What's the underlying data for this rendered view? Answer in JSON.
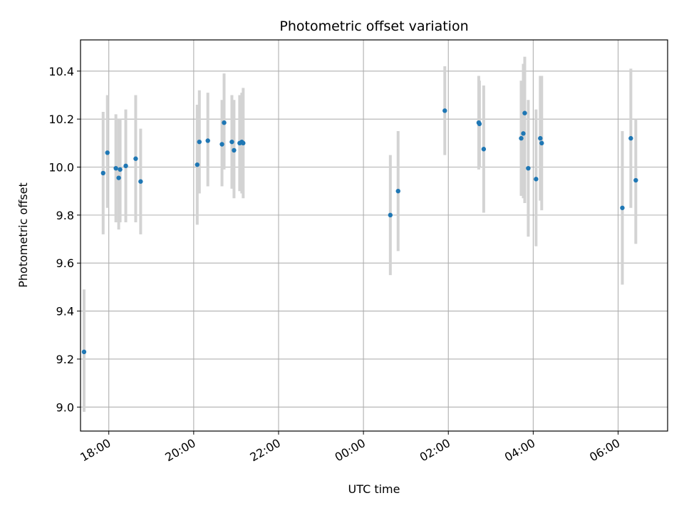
{
  "chart_data": {
    "type": "scatter",
    "title": "Photometric offset variation",
    "xlabel": "UTC time",
    "ylabel": "Photometric offset",
    "x_axis_type": "time",
    "xlim": [
      "17:20",
      "07:10"
    ],
    "x_ticks": [
      "18:00",
      "20:00",
      "22:00",
      "00:00",
      "02:00",
      "04:00",
      "06:00"
    ],
    "ylim": [
      8.9,
      10.53
    ],
    "y_ticks": [
      "9.0",
      "9.2",
      "9.4",
      "9.6",
      "9.8",
      "10.0",
      "10.2",
      "10.4"
    ],
    "grid": true,
    "marker_color": "#1f77b4",
    "errorbar_color": "#d3d3d3",
    "points": [
      {
        "x": "17:25",
        "y": 9.23,
        "yerr_low": 8.98,
        "yerr_high": 9.49
      },
      {
        "x": "17:52",
        "y": 9.975,
        "yerr_low": 9.72,
        "yerr_high": 10.23
      },
      {
        "x": "17:58",
        "y": 10.06,
        "yerr_low": 9.83,
        "yerr_high": 10.3
      },
      {
        "x": "18:10",
        "y": 9.995,
        "yerr_low": 9.77,
        "yerr_high": 10.22
      },
      {
        "x": "18:14",
        "y": 9.955,
        "yerr_low": 9.74,
        "yerr_high": 10.2
      },
      {
        "x": "18:16",
        "y": 9.99,
        "yerr_low": 9.77,
        "yerr_high": 10.2
      },
      {
        "x": "18:24",
        "y": 10.005,
        "yerr_low": 9.77,
        "yerr_high": 10.24
      },
      {
        "x": "18:38",
        "y": 10.035,
        "yerr_low": 9.77,
        "yerr_high": 10.3
      },
      {
        "x": "18:45",
        "y": 9.94,
        "yerr_low": 9.72,
        "yerr_high": 10.16
      },
      {
        "x": "20:05",
        "y": 10.01,
        "yerr_low": 9.76,
        "yerr_high": 10.26
      },
      {
        "x": "20:08",
        "y": 10.105,
        "yerr_low": 9.89,
        "yerr_high": 10.32
      },
      {
        "x": "20:20",
        "y": 10.11,
        "yerr_low": 9.92,
        "yerr_high": 10.31
      },
      {
        "x": "20:40",
        "y": 10.095,
        "yerr_low": 9.92,
        "yerr_high": 10.28
      },
      {
        "x": "20:43",
        "y": 10.185,
        "yerr_low": 9.99,
        "yerr_high": 10.39
      },
      {
        "x": "20:54",
        "y": 10.105,
        "yerr_low": 9.91,
        "yerr_high": 10.3
      },
      {
        "x": "20:57",
        "y": 10.07,
        "yerr_low": 9.87,
        "yerr_high": 10.28
      },
      {
        "x": "21:05",
        "y": 10.1,
        "yerr_low": 9.9,
        "yerr_high": 10.3
      },
      {
        "x": "21:08",
        "y": 10.105,
        "yerr_low": 9.89,
        "yerr_high": 10.31
      },
      {
        "x": "21:10",
        "y": 10.1,
        "yerr_low": 9.87,
        "yerr_high": 10.33
      },
      {
        "x": "00:38",
        "y": 9.8,
        "yerr_low": 9.55,
        "yerr_high": 10.05
      },
      {
        "x": "00:49",
        "y": 9.9,
        "yerr_low": 9.65,
        "yerr_high": 10.15
      },
      {
        "x": "01:55",
        "y": 10.235,
        "yerr_low": 10.05,
        "yerr_high": 10.42
      },
      {
        "x": "02:43",
        "y": 10.185,
        "yerr_low": 9.99,
        "yerr_high": 10.38
      },
      {
        "x": "02:44",
        "y": 10.18,
        "yerr_low": 10.0,
        "yerr_high": 10.36
      },
      {
        "x": "02:50",
        "y": 10.075,
        "yerr_low": 9.81,
        "yerr_high": 10.34
      },
      {
        "x": "03:43",
        "y": 10.12,
        "yerr_low": 9.88,
        "yerr_high": 10.36
      },
      {
        "x": "03:46",
        "y": 10.14,
        "yerr_low": 9.87,
        "yerr_high": 10.43
      },
      {
        "x": "03:48",
        "y": 10.225,
        "yerr_low": 9.85,
        "yerr_high": 10.46
      },
      {
        "x": "03:53",
        "y": 9.995,
        "yerr_low": 9.71,
        "yerr_high": 10.28
      },
      {
        "x": "04:04",
        "y": 9.95,
        "yerr_low": 9.67,
        "yerr_high": 10.24
      },
      {
        "x": "04:10",
        "y": 10.12,
        "yerr_low": 9.86,
        "yerr_high": 10.38
      },
      {
        "x": "04:12",
        "y": 10.1,
        "yerr_low": 9.82,
        "yerr_high": 10.38
      },
      {
        "x": "06:06",
        "y": 9.83,
        "yerr_low": 9.51,
        "yerr_high": 10.15
      },
      {
        "x": "06:18",
        "y": 10.12,
        "yerr_low": 9.83,
        "yerr_high": 10.41
      },
      {
        "x": "06:25",
        "y": 9.945,
        "yerr_low": 9.68,
        "yerr_high": 10.2
      }
    ]
  }
}
